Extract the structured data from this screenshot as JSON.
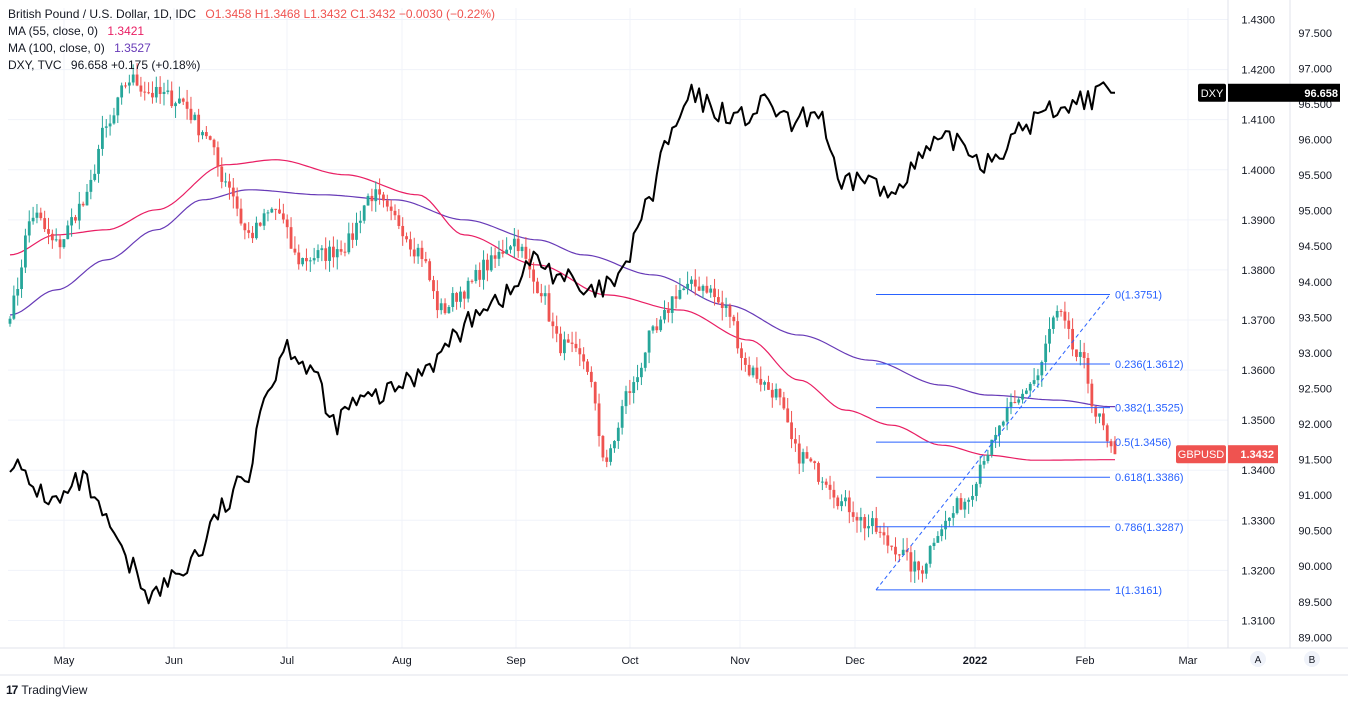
{
  "header": {
    "symbol_title": "British Pound / U.S. Dollar, 1D, IDC",
    "ohlc": "O1.3458 H1.3468 L1.3432 C1.3432 −0.0030 (−0.22%)",
    "ma55_label": "MA (55, close, 0)",
    "ma55_value": "1.3421",
    "ma100_label": "MA (100, close, 0)",
    "ma100_value": "1.3527",
    "dxy_label": "DXY, TVC",
    "dxy_value": "96.658",
    "dxy_change": "+0.175 (+0.18%)"
  },
  "footer": {
    "brand": "TradingView",
    "logo": "17"
  },
  "scale_buttons": [
    "A",
    "B"
  ],
  "colors": {
    "up": "#26a69a",
    "down": "#ef5350",
    "ma55": "#e91e63",
    "ma100": "#673ab7",
    "dxy": "#000000",
    "fib": "#2962ff",
    "grid": "#f0f3fa",
    "axis_text": "#131722"
  },
  "chart_data": {
    "type": "candlestick",
    "title": "British Pound / U.S. Dollar, 1D, IDC",
    "x_labels": [
      "May",
      "Jun",
      "Jul",
      "Aug",
      "Sep",
      "Oct",
      "Nov",
      "Dec",
      "2022",
      "Feb",
      "Mar"
    ],
    "left_axis": {
      "name": "GBPUSD",
      "range": [
        1.3045,
        1.4323
      ],
      "ticks": [
        "1.4300",
        "1.4200",
        "1.4100",
        "1.4000",
        "1.3900",
        "1.3800",
        "1.3700",
        "1.3600",
        "1.3500",
        "1.3400",
        "1.3300",
        "1.3200",
        "1.3100"
      ]
    },
    "right_axis": {
      "name": "DXY",
      "range": [
        88.85,
        97.85
      ],
      "ticks": [
        "97.500",
        "97.000",
        "96.500",
        "96.000",
        "95.500",
        "95.000",
        "94.500",
        "94.000",
        "93.500",
        "93.000",
        "92.500",
        "92.000",
        "91.500",
        "91.000",
        "90.500",
        "90.000",
        "89.500",
        "89.000"
      ]
    },
    "price_tags": [
      {
        "label": "DXY",
        "value": "96.658",
        "axis": "right",
        "color": "#000000"
      },
      {
        "label": "GBPUSD",
        "value": "1.3432",
        "axis": "left",
        "color": "#ef5350"
      }
    ],
    "fibonacci": {
      "from": 1.3161,
      "to": 1.3751,
      "levels": [
        {
          "ratio": "0",
          "price": 1.3751,
          "label": "0(1.3751)"
        },
        {
          "ratio": "0.236",
          "price": 1.3612,
          "label": "0.236(1.3612)"
        },
        {
          "ratio": "0.382",
          "price": 1.3525,
          "label": "0.382(1.3525)"
        },
        {
          "ratio": "0.5",
          "price": 1.3456,
          "label": "0.5(1.3456)"
        },
        {
          "ratio": "0.618",
          "price": 1.3386,
          "label": "0.618(1.3386)"
        },
        {
          "ratio": "0.786",
          "price": 1.3287,
          "label": "0.786(1.3287)"
        },
        {
          "ratio": "1",
          "price": 1.3161,
          "label": "1(1.3161)"
        }
      ]
    },
    "gbpusd_anchors": [
      [
        0,
        1.372
      ],
      [
        6,
        1.391
      ],
      [
        12,
        1.385
      ],
      [
        19,
        1.393
      ],
      [
        25,
        1.408
      ],
      [
        31,
        1.418
      ],
      [
        38,
        1.415
      ],
      [
        44,
        1.414
      ],
      [
        50,
        1.408
      ],
      [
        56,
        1.398
      ],
      [
        62,
        1.387
      ],
      [
        69,
        1.392
      ],
      [
        75,
        1.382
      ],
      [
        81,
        1.383
      ],
      [
        87,
        1.385
      ],
      [
        94,
        1.395
      ],
      [
        100,
        1.39
      ],
      [
        106,
        1.384
      ],
      [
        112,
        1.372
      ],
      [
        118,
        1.376
      ],
      [
        124,
        1.381
      ],
      [
        131,
        1.386
      ],
      [
        137,
        1.377
      ],
      [
        143,
        1.365
      ],
      [
        149,
        1.362
      ],
      [
        155,
        1.342
      ],
      [
        161,
        1.356
      ],
      [
        167,
        1.367
      ],
      [
        174,
        1.376
      ],
      [
        180,
        1.377
      ],
      [
        186,
        1.372
      ],
      [
        192,
        1.36
      ],
      [
        198,
        1.356
      ],
      [
        205,
        1.343
      ],
      [
        211,
        1.339
      ],
      [
        217,
        1.333
      ],
      [
        223,
        1.329
      ],
      [
        229,
        1.325
      ],
      [
        236,
        1.32
      ],
      [
        242,
        1.329
      ],
      [
        248,
        1.334
      ],
      [
        254,
        1.344
      ],
      [
        260,
        1.352
      ],
      [
        266,
        1.358
      ],
      [
        272,
        1.371
      ],
      [
        278,
        1.362
      ],
      [
        283,
        1.35
      ],
      [
        286,
        1.3432
      ]
    ],
    "ma55_anchors": [
      [
        0,
        1.383
      ],
      [
        12,
        1.387
      ],
      [
        25,
        1.388
      ],
      [
        38,
        1.392
      ],
      [
        56,
        1.401
      ],
      [
        69,
        1.402
      ],
      [
        87,
        1.399
      ],
      [
        106,
        1.395
      ],
      [
        118,
        1.387
      ],
      [
        137,
        1.381
      ],
      [
        155,
        1.375
      ],
      [
        174,
        1.372
      ],
      [
        192,
        1.366
      ],
      [
        205,
        1.358
      ],
      [
        217,
        1.352
      ],
      [
        229,
        1.349
      ],
      [
        242,
        1.345
      ],
      [
        254,
        1.343
      ],
      [
        266,
        1.342
      ],
      [
        286,
        1.3421
      ]
    ],
    "ma100_anchors": [
      [
        0,
        1.371
      ],
      [
        12,
        1.376
      ],
      [
        25,
        1.382
      ],
      [
        38,
        1.388
      ],
      [
        50,
        1.394
      ],
      [
        62,
        1.396
      ],
      [
        81,
        1.395
      ],
      [
        100,
        1.394
      ],
      [
        118,
        1.39
      ],
      [
        137,
        1.386
      ],
      [
        149,
        1.383
      ],
      [
        167,
        1.379
      ],
      [
        186,
        1.373
      ],
      [
        205,
        1.367
      ],
      [
        223,
        1.362
      ],
      [
        242,
        1.357
      ],
      [
        254,
        1.355
      ],
      [
        272,
        1.354
      ],
      [
        286,
        1.3527
      ]
    ],
    "dxy_anchors": [
      [
        0,
        91.5
      ],
      [
        6,
        91.1
      ],
      [
        12,
        90.9
      ],
      [
        19,
        91.2
      ],
      [
        25,
        90.6
      ],
      [
        31,
        90.0
      ],
      [
        37,
        89.6
      ],
      [
        44,
        89.9
      ],
      [
        49,
        90.2
      ],
      [
        55,
        90.8
      ],
      [
        61,
        91.2
      ],
      [
        66,
        92.4
      ],
      [
        72,
        93.1
      ],
      [
        78,
        92.8
      ],
      [
        84,
        92.0
      ],
      [
        90,
        92.3
      ],
      [
        97,
        92.4
      ],
      [
        103,
        92.6
      ],
      [
        110,
        92.9
      ],
      [
        117,
        93.3
      ],
      [
        123,
        93.7
      ],
      [
        129,
        93.8
      ],
      [
        136,
        94.3
      ],
      [
        143,
        94.1
      ],
      [
        150,
        93.8
      ],
      [
        158,
        94.0
      ],
      [
        165,
        95.0
      ],
      [
        171,
        96.0
      ],
      [
        177,
        96.6
      ],
      [
        184,
        96.4
      ],
      [
        190,
        96.3
      ],
      [
        197,
        96.5
      ],
      [
        203,
        96.2
      ],
      [
        210,
        96.4
      ],
      [
        216,
        95.3
      ],
      [
        222,
        95.5
      ],
      [
        228,
        95.2
      ],
      [
        234,
        95.6
      ],
      [
        240,
        95.9
      ],
      [
        246,
        96.0
      ],
      [
        253,
        95.7
      ],
      [
        259,
        95.9
      ],
      [
        264,
        96.2
      ],
      [
        269,
        96.4
      ],
      [
        275,
        96.5
      ],
      [
        281,
        96.6
      ],
      [
        286,
        96.658
      ]
    ]
  }
}
